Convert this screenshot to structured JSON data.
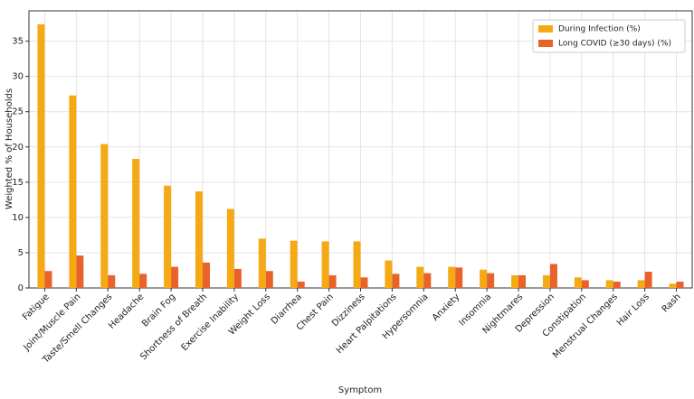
{
  "chart_data": {
    "type": "bar",
    "xlabel": "Symptom",
    "ylabel": "Weighted % of Households",
    "categories": [
      "Fatigue",
      "Joint/Muscle Pain",
      "Taste/Smell Changes",
      "Headache",
      "Brain Fog",
      "Shortness of Breath",
      "Exercise Inability",
      "Weight Loss",
      "Diarrhea",
      "Chest Pain",
      "Dizziness",
      "Heart Palpitations",
      "Hypersomnia",
      "Anxiety",
      "Insomnia",
      "Nightmares",
      "Depression",
      "Constipation",
      "Menstrual Changes",
      "Hair Loss",
      "Rash"
    ],
    "series": [
      {
        "name": "During Infection (%)",
        "color": "#f5a914",
        "values": [
          37.4,
          27.3,
          20.4,
          18.3,
          14.5,
          13.7,
          11.2,
          7.0,
          6.7,
          6.6,
          6.6,
          3.9,
          3.0,
          3.0,
          2.6,
          1.8,
          1.8,
          1.5,
          1.1,
          1.1,
          0.6
        ]
      },
      {
        "name": "Long COVID (≥30 days) (%)",
        "color": "#e8622a",
        "values": [
          2.4,
          4.6,
          1.8,
          2.0,
          3.0,
          3.6,
          2.7,
          2.4,
          0.9,
          1.8,
          1.5,
          2.0,
          2.1,
          2.9,
          2.1,
          1.8,
          3.4,
          1.1,
          0.9,
          2.3,
          0.9
        ]
      }
    ],
    "ylim": [
      0,
      39.3
    ],
    "yticks": [
      0,
      5,
      10,
      15,
      20,
      25,
      30,
      35
    ],
    "grid": true,
    "legend": "upper right"
  }
}
